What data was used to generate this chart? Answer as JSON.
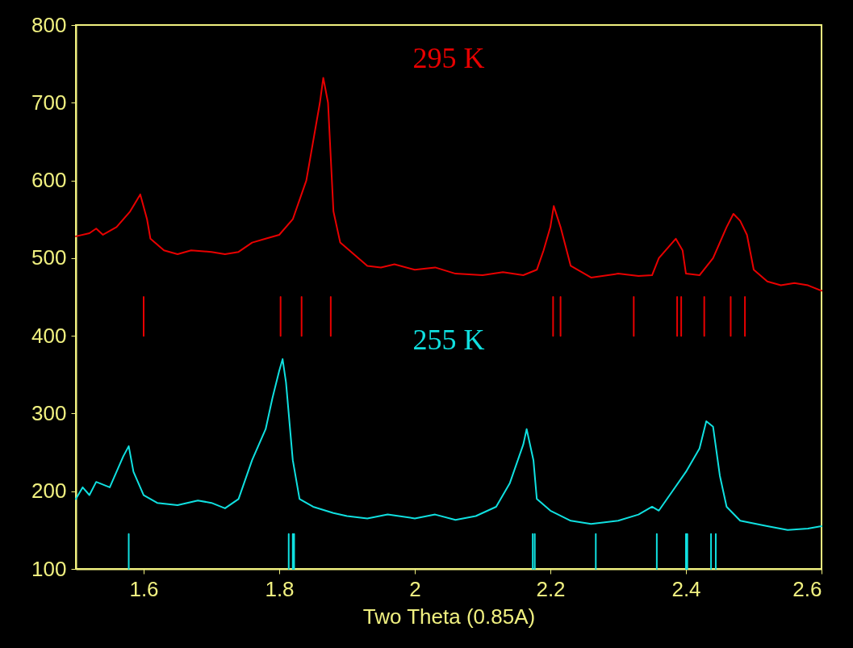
{
  "chart_data": {
    "type": "line",
    "xlabel": "Two Theta (0.85A)",
    "xlim": [
      1.5,
      2.6
    ],
    "xticks": [
      1.6,
      1.8,
      2,
      2.2,
      2.4,
      2.6
    ],
    "ylim": [
      100,
      800
    ],
    "yticks": [
      100,
      200,
      300,
      400,
      500,
      600,
      700,
      800
    ],
    "grid": false,
    "line_style": "solid",
    "marker": "none",
    "series": [
      {
        "name": "295 K",
        "color": "#e80000",
        "x": [
          1.5,
          1.52,
          1.53,
          1.54,
          1.56,
          1.58,
          1.595,
          1.605,
          1.61,
          1.63,
          1.65,
          1.67,
          1.7,
          1.72,
          1.74,
          1.76,
          1.78,
          1.8,
          1.82,
          1.84,
          1.85,
          1.86,
          1.865,
          1.872,
          1.88,
          1.89,
          1.91,
          1.93,
          1.95,
          1.97,
          2,
          2.03,
          2.06,
          2.1,
          2.13,
          2.16,
          2.18,
          2.19,
          2.2,
          2.205,
          2.215,
          2.23,
          2.26,
          2.3,
          2.33,
          2.35,
          2.36,
          2.38,
          2.385,
          2.395,
          2.4,
          2.42,
          2.44,
          2.46,
          2.47,
          2.48,
          2.49,
          2.5,
          2.52,
          2.54,
          2.56,
          2.58,
          2.6
        ],
        "values": [
          528,
          532,
          538,
          530,
          540,
          560,
          582,
          550,
          525,
          510,
          505,
          510,
          508,
          505,
          508,
          520,
          525,
          530,
          550,
          600,
          650,
          700,
          732,
          700,
          560,
          520,
          505,
          490,
          488,
          492,
          485,
          488,
          480,
          478,
          482,
          478,
          485,
          510,
          540,
          567,
          540,
          490,
          475,
          480,
          477,
          478,
          500,
          520,
          525,
          510,
          480,
          478,
          500,
          540,
          557,
          548,
          530,
          485,
          470,
          465,
          468,
          465,
          458
        ]
      },
      {
        "name": "255 K",
        "color": "#10e0e0",
        "x": [
          1.5,
          1.51,
          1.52,
          1.53,
          1.55,
          1.56,
          1.57,
          1.578,
          1.585,
          1.6,
          1.62,
          1.65,
          1.68,
          1.7,
          1.72,
          1.74,
          1.76,
          1.78,
          1.79,
          1.8,
          1.805,
          1.81,
          1.82,
          1.83,
          1.85,
          1.88,
          1.9,
          1.93,
          1.96,
          2,
          2.03,
          2.06,
          2.09,
          2.12,
          2.14,
          2.16,
          2.165,
          2.175,
          2.18,
          2.2,
          2.23,
          2.26,
          2.3,
          2.33,
          2.35,
          2.36,
          2.38,
          2.4,
          2.42,
          2.43,
          2.44,
          2.45,
          2.46,
          2.48,
          2.52,
          2.55,
          2.58,
          2.6
        ],
        "values": [
          190,
          205,
          195,
          212,
          205,
          225,
          245,
          258,
          225,
          195,
          185,
          182,
          188,
          185,
          178,
          190,
          240,
          280,
          320,
          355,
          370,
          340,
          240,
          190,
          180,
          172,
          168,
          165,
          170,
          165,
          170,
          163,
          168,
          180,
          210,
          260,
          280,
          240,
          190,
          175,
          162,
          158,
          162,
          170,
          180,
          175,
          200,
          225,
          255,
          290,
          283,
          220,
          180,
          162,
          155,
          150,
          152,
          155
        ]
      },
      {
        "color": "#e80000",
        "x": [
          1.6,
          1.6,
          null,
          1.802,
          1.802,
          null,
          1.833,
          1.833,
          null,
          1.876,
          1.876,
          null,
          2.204,
          2.204,
          null,
          2.215,
          2.215,
          null,
          2.323,
          2.323,
          null,
          2.387,
          2.387,
          null,
          2.393,
          2.393,
          null,
          2.427,
          2.427,
          null,
          2.466,
          2.466,
          null,
          2.487,
          2.487
        ],
        "values": [
          400,
          450,
          null,
          400,
          450,
          null,
          400,
          450,
          null,
          400,
          450,
          null,
          400,
          450,
          null,
          400,
          450,
          null,
          400,
          450,
          null,
          400,
          450,
          null,
          400,
          450,
          null,
          400,
          450,
          null,
          400,
          450,
          null,
          400,
          450
        ]
      },
      {
        "color": "#10e0e0",
        "x": [
          1.578,
          1.578,
          null,
          1.814,
          1.814,
          null,
          1.82,
          1.82,
          null,
          1.822,
          1.822,
          null,
          2.174,
          2.174,
          null,
          2.177,
          2.177,
          null,
          2.267,
          2.267,
          null,
          2.357,
          2.357,
          null,
          2.4,
          2.4,
          null,
          2.402,
          2.402,
          null,
          2.437,
          2.437,
          null,
          2.444,
          2.444
        ],
        "values": [
          100,
          145,
          null,
          100,
          145,
          null,
          100,
          145,
          null,
          100,
          145,
          null,
          100,
          145,
          null,
          100,
          145,
          null,
          100,
          145,
          null,
          100,
          145,
          null,
          100,
          145,
          null,
          100,
          145,
          null,
          100,
          145,
          null,
          100,
          145
        ]
      }
    ]
  }
}
